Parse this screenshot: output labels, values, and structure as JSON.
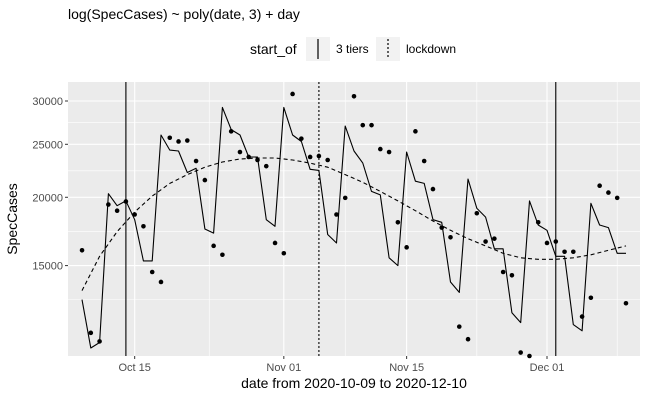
{
  "chart_data": {
    "type": "line",
    "title": "log(SpecCases) ~ poly(date, 3) + day",
    "xlabel": "date from 2020-10-09 to 2020-12-10",
    "ylabel": "SpecCases",
    "x_start": "2020-10-09",
    "x_end": "2020-12-10",
    "y_scale": "log",
    "ylim": [
      10250,
      32500
    ],
    "xlim_day": [
      -1.6,
      63.6
    ],
    "x_ticks": [
      {
        "label": "Oct 15",
        "day": 6
      },
      {
        "label": "Nov 01",
        "day": 23
      },
      {
        "label": "Nov 15",
        "day": 37
      },
      {
        "label": "Dec 01",
        "day": 53
      }
    ],
    "y_ticks": [
      {
        "label": "15000",
        "value": 15000
      },
      {
        "label": "20000",
        "value": 20000
      },
      {
        "label": "25000",
        "value": 25000
      },
      {
        "label": "30000",
        "value": 30000
      }
    ],
    "legend": {
      "title": "start_of",
      "position": "top",
      "entries": [
        {
          "label": "3 tiers",
          "linetype": "solid"
        },
        {
          "label": "lockdown",
          "linetype": "dotted"
        }
      ]
    },
    "vlines": [
      {
        "name": "3 tiers",
        "day": 5,
        "linetype": "solid"
      },
      {
        "name": "lockdown",
        "day": 27,
        "linetype": "dotted"
      },
      {
        "name": "3 tiers",
        "day": 54,
        "linetype": "solid"
      }
    ],
    "series": [
      {
        "name": "observed",
        "kind": "points",
        "day": [
          0,
          1,
          2,
          3,
          4,
          5,
          6,
          7,
          8,
          9,
          10,
          11,
          12,
          13,
          14,
          15,
          16,
          17,
          18,
          19,
          20,
          21,
          22,
          23,
          24,
          25,
          26,
          27,
          28,
          29,
          30,
          31,
          32,
          33,
          34,
          35,
          36,
          37,
          38,
          39,
          40,
          41,
          42,
          43,
          44,
          45,
          46,
          47,
          48,
          49,
          50,
          51,
          52,
          53,
          54,
          55,
          56,
          57,
          58,
          59,
          60,
          61,
          62
        ],
        "value": [
          16000,
          11300,
          10900,
          19400,
          18900,
          19650,
          18600,
          17700,
          14600,
          14000,
          25700,
          25300,
          25400,
          23300,
          21500,
          16300,
          15700,
          26400,
          24200,
          23700,
          23400,
          22800,
          16500,
          15800,
          30900,
          25600,
          23700,
          23800,
          23400,
          18600,
          19950,
          30600,
          27100,
          27100,
          24500,
          24200,
          18000,
          16200,
          26400,
          23300,
          20700,
          17600,
          16900,
          11600,
          11000,
          18700,
          16600,
          16800,
          14600,
          14400,
          10400,
          10250,
          18000,
          16500,
          16600,
          15900,
          15900,
          12100,
          13100,
          21000,
          20400,
          19950,
          12800
        ]
      },
      {
        "name": "fitted",
        "kind": "line",
        "linetype": "solid",
        "day": [
          0,
          1,
          2,
          3,
          4,
          5,
          6,
          7,
          8,
          9,
          10,
          11,
          12,
          13,
          14,
          15,
          16,
          17,
          18,
          19,
          20,
          21,
          22,
          23,
          24,
          25,
          26,
          27,
          28,
          29,
          30,
          31,
          32,
          33,
          34,
          35,
          36,
          37,
          38,
          39,
          40,
          41,
          42,
          43,
          44,
          45,
          46,
          47,
          48,
          49,
          50,
          51,
          52,
          53,
          54,
          55,
          56,
          57,
          58,
          59,
          60,
          61,
          62
        ],
        "value": [
          13000,
          10600,
          10850,
          20300,
          19300,
          19700,
          18200,
          15300,
          15300,
          26000,
          24400,
          24300,
          22200,
          22600,
          17500,
          17200,
          29200,
          26600,
          26000,
          23700,
          23700,
          18200,
          17700,
          29200,
          26000,
          25300,
          22500,
          22400,
          17100,
          16500,
          27000,
          24300,
          23100,
          20500,
          20200,
          15500,
          15000,
          24200,
          21400,
          21200,
          18200,
          18000,
          14000,
          13400,
          21600,
          19100,
          18400,
          16100,
          16100,
          12300,
          11800,
          19700,
          17800,
          17400,
          15600,
          15600,
          11700,
          11400,
          19500,
          17800,
          17600,
          15800,
          15800
        ]
      },
      {
        "name": "trend",
        "kind": "line",
        "linetype": "dashed",
        "day": [
          0,
          2,
          4,
          6,
          8,
          10,
          12,
          14,
          16,
          18,
          20,
          22,
          24,
          26,
          28,
          30,
          32,
          34,
          36,
          38,
          40,
          42,
          44,
          46,
          48,
          50,
          52,
          54,
          56,
          58,
          60,
          62
        ],
        "value": [
          13500,
          15600,
          17300,
          18800,
          20100,
          21200,
          22000,
          22700,
          23200,
          23500,
          23600,
          23600,
          23400,
          23100,
          22700,
          22000,
          21300,
          20500,
          19700,
          18900,
          18100,
          17400,
          16800,
          16300,
          15800,
          15500,
          15400,
          15400,
          15500,
          15700,
          16000,
          16300
        ]
      }
    ]
  }
}
